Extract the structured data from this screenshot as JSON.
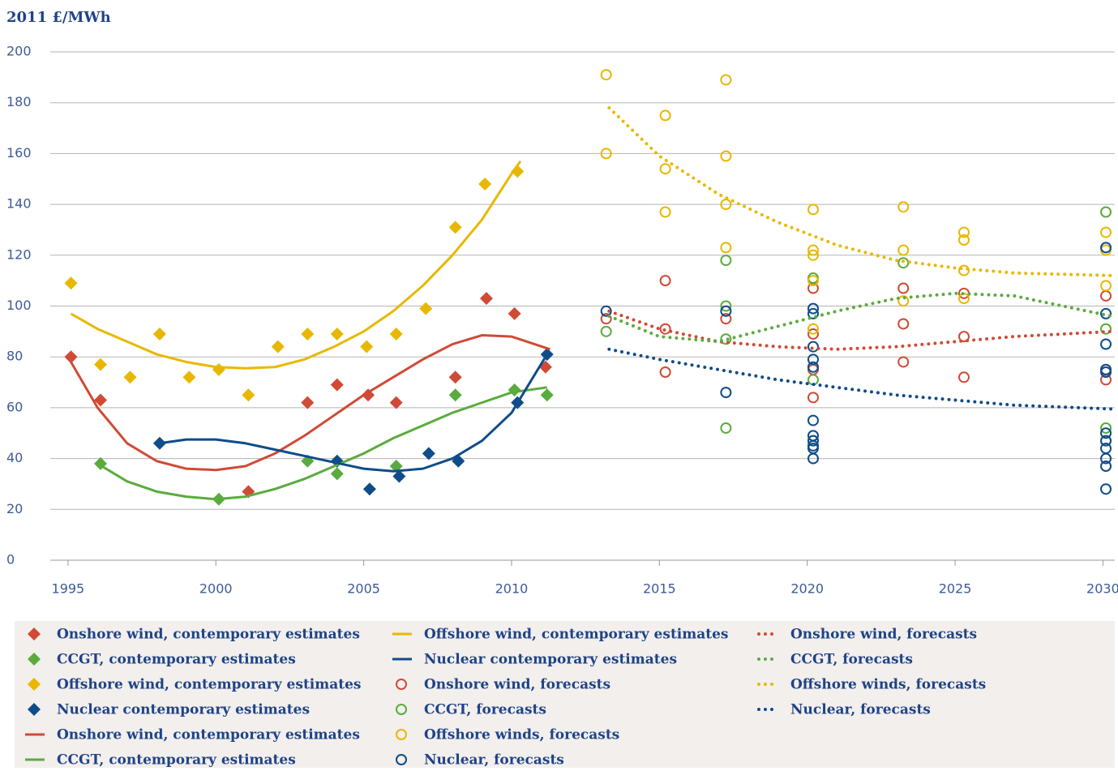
{
  "chart_data": {
    "type": "scatter",
    "ylabel": "2011 £/MWh",
    "xlim": [
      1994.4,
      2030.4
    ],
    "ylim": [
      0,
      200
    ],
    "xticks": [
      1995,
      2000,
      2005,
      2010,
      2015,
      2020,
      2025,
      2030
    ],
    "yticks": [
      0,
      20,
      40,
      60,
      80,
      100,
      120,
      140,
      160,
      180,
      200
    ],
    "grid": true,
    "series": [
      {
        "name": "Onshore wind, contemporary estimates",
        "color": "#d04a35",
        "marker": "diamond",
        "x": [
          1995.1,
          1996.1,
          2001.1,
          2003.1,
          2004.1,
          2005.15,
          2006.1,
          2008.1,
          2009.15,
          2010.1,
          2011.15
        ],
        "values": [
          80,
          63,
          27,
          62,
          69,
          65,
          62,
          72,
          103,
          97,
          76
        ]
      },
      {
        "name": "CCGT, contemporary estimates",
        "color": "#5aab3e",
        "marker": "diamond",
        "x": [
          1996.1,
          2000.1,
          2003.1,
          2004.1,
          2006.1,
          2008.1,
          2010.1,
          2011.2
        ],
        "values": [
          38,
          24,
          39,
          34,
          37,
          65,
          67,
          65
        ]
      },
      {
        "name": "Offshore wind, contemporary estimates",
        "color": "#e8b800",
        "marker": "diamond",
        "x": [
          1995.1,
          1996.1,
          1997.1,
          1998.1,
          1999.1,
          2000.1,
          2001.1,
          2002.1,
          2003.1,
          2004.1,
          2005.1,
          2006.1,
          2007.1,
          2008.1,
          2009.1,
          2010.2
        ],
        "values": [
          109,
          77,
          72,
          89,
          72,
          75,
          65,
          84,
          89,
          89,
          84,
          89,
          99,
          131,
          148,
          153
        ]
      },
      {
        "name": "Nuclear contemporary estimates",
        "color": "#0f4c8a",
        "marker": "diamond",
        "x": [
          1998.1,
          2004.1,
          2005.2,
          2006.2,
          2007.2,
          2008.2,
          2010.2,
          2011.2
        ],
        "values": [
          46,
          39,
          28,
          33,
          42,
          39,
          62,
          81
        ]
      },
      {
        "name": "Onshore wind, contemporary estimates",
        "color": "#d04a35",
        "style": "solid",
        "x": [
          1995,
          1996,
          1997,
          1998,
          1999,
          2000,
          2001,
          2002,
          2003,
          2004,
          2005,
          2006,
          2007,
          2008,
          2009,
          2010,
          2011.3
        ],
        "values": [
          80,
          60,
          46,
          39,
          36,
          35.5,
          37,
          42,
          49,
          57,
          65,
          72,
          79,
          85,
          88.5,
          88,
          83
        ]
      },
      {
        "name": "CCGT, contemporary estimates",
        "color": "#5aab3e",
        "style": "solid",
        "x": [
          1996,
          1997,
          1998,
          1999,
          2000,
          2001,
          2002,
          2003,
          2004,
          2005,
          2006,
          2007,
          2008,
          2009,
          2010,
          2011.2
        ],
        "values": [
          38,
          31,
          27,
          25,
          24,
          25,
          28,
          32,
          37,
          42,
          48,
          53,
          58,
          62,
          66,
          68
        ]
      },
      {
        "name": "Offshore wind, contemporary estimates",
        "color": "#e8b800",
        "style": "solid",
        "x": [
          1995.1,
          1996,
          1997,
          1998,
          1999,
          2000,
          2001,
          2002,
          2003,
          2004,
          2005,
          2006,
          2007,
          2008,
          2009,
          2010,
          2010.3
        ],
        "values": [
          97,
          91,
          86,
          81,
          78,
          76,
          75.5,
          76,
          79,
          84,
          90,
          98,
          108,
          120,
          134,
          152,
          157
        ]
      },
      {
        "name": "Nuclear contemporary estimates",
        "color": "#0f4c8a",
        "style": "solid",
        "x": [
          1998.1,
          1999,
          2000,
          2001,
          2002,
          2003,
          2004,
          2005,
          2006,
          2007,
          2008,
          2009,
          2010,
          2011.2
        ],
        "values": [
          46,
          47.5,
          47.5,
          46,
          43.5,
          41,
          38.5,
          36,
          35,
          36,
          40,
          47,
          58,
          81
        ]
      },
      {
        "name": "Onshore wind, forecasts",
        "color": "#d04a35",
        "marker": "circle",
        "x": [
          2013.2,
          2015.2,
          2015.2,
          2015.2,
          2017.25,
          2020.2,
          2020.2,
          2020.2,
          2020.2,
          2023.25,
          2023.25,
          2023.25,
          2025.3,
          2025.3,
          2025.3,
          2030.1,
          2030.1,
          2030.1
        ],
        "values": [
          95,
          110,
          91,
          74,
          95,
          107,
          89,
          75,
          64,
          107,
          93,
          78,
          105,
          88,
          72,
          104,
          75,
          71
        ]
      },
      {
        "name": "CCGT, forecasts",
        "color": "#5aab3e",
        "marker": "circle",
        "x": [
          2013.2,
          2017.25,
          2017.25,
          2017.25,
          2017.25,
          2020.2,
          2020.2,
          2020.2,
          2023.25,
          2030.1,
          2030.1,
          2030.1,
          2030.1
        ],
        "values": [
          90,
          118,
          100,
          87,
          52,
          111,
          71,
          47,
          117,
          137,
          91,
          52,
          47
        ]
      },
      {
        "name": "Offshore winds, forecasts",
        "color": "#e8b800",
        "marker": "circle",
        "x": [
          2013.2,
          2013.2,
          2015.2,
          2015.2,
          2015.2,
          2017.25,
          2017.25,
          2017.25,
          2017.25,
          2020.2,
          2020.2,
          2020.2,
          2020.2,
          2020.2,
          2023.25,
          2023.25,
          2023.25,
          2025.3,
          2025.3,
          2025.3,
          2025.3,
          2030.1,
          2030.1,
          2030.1
        ],
        "values": [
          191,
          160,
          175,
          154,
          137,
          189,
          159,
          140,
          123,
          138,
          122,
          120,
          110,
          91,
          139,
          122,
          102,
          129,
          126,
          114,
          103,
          129,
          122,
          108
        ]
      },
      {
        "name": "Nuclear, forecasts",
        "color": "#0f4c8a",
        "marker": "circle",
        "x": [
          2013.2,
          2017.25,
          2017.25,
          2020.2,
          2020.2,
          2020.2,
          2020.2,
          2020.2,
          2020.2,
          2020.2,
          2020.2,
          2020.2,
          2020.2,
          2020.2,
          2030.1,
          2030.1,
          2030.1,
          2030.1,
          2030.1,
          2030.1,
          2030.1,
          2030.1,
          2030.1,
          2030.1,
          2030.1
        ],
        "values": [
          98,
          98,
          66,
          99,
          97,
          84,
          79,
          76,
          55,
          49,
          47,
          45,
          44,
          40,
          123,
          97,
          85,
          75,
          74,
          50,
          47,
          44,
          40,
          37,
          28
        ]
      },
      {
        "name": "Onshore wind, forecasts",
        "color": "#d04a35",
        "style": "dotted",
        "x": [
          2013.3,
          2015,
          2017,
          2019,
          2021,
          2023,
          2025,
          2027,
          2030.3
        ],
        "values": [
          98,
          91,
          86,
          84,
          83,
          84,
          86,
          88,
          90
        ]
      },
      {
        "name": "CCGT, forecasts",
        "color": "#5aab3e",
        "style": "dotted",
        "x": [
          2013.3,
          2015,
          2017,
          2019,
          2021,
          2023,
          2025,
          2027,
          2030.3
        ],
        "values": [
          96,
          88,
          86,
          92,
          98,
          103,
          105,
          104,
          96
        ]
      },
      {
        "name": "Offshore winds, forecasts",
        "color": "#e8b800",
        "style": "dotted",
        "x": [
          2013.3,
          2015,
          2017,
          2019,
          2021,
          2023,
          2025,
          2027,
          2030.3
        ],
        "values": [
          178,
          159,
          144,
          133,
          124,
          118,
          115,
          113,
          112
        ]
      },
      {
        "name": "Nuclear, forecasts",
        "color": "#0f4c8a",
        "style": "dotted",
        "x": [
          2013.3,
          2015,
          2017,
          2019,
          2021,
          2023,
          2025,
          2027,
          2030.3
        ],
        "values": [
          83,
          79,
          75,
          71,
          68,
          65,
          63,
          61,
          59.5
        ]
      }
    ]
  }
}
